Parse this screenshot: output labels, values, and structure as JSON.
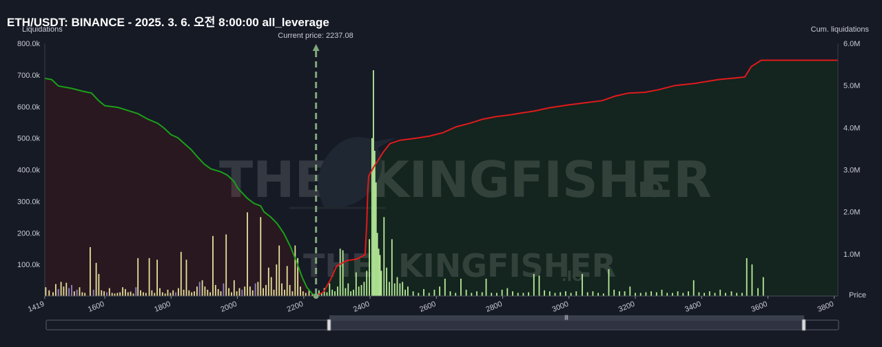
{
  "title": "ETH/USDT: BINANCE - 2025. 3. 6. 오전 8:00:00 all_leverage",
  "watermark": {
    "big_left": "THE",
    "big_right": "KINGFISHER",
    "big_suffix": ".IO",
    "small_left": "THE",
    "small_right": "KINGFISHER",
    "small_suffix": ".IO"
  },
  "colors": {
    "background": "#161a25",
    "short_fill": "#2a1820",
    "long_fill": "#14251e",
    "short_cum_line": "#1aa01a",
    "long_cum_line": "#e01b1b",
    "bar_yellow": "#e6e29a",
    "bar_purple": "#8f86c9",
    "bar_green": "#b8ee9a",
    "current_price": "#7fa97a"
  },
  "chart_data": {
    "type": "bar",
    "left_axis_title": "Liquidations",
    "right_axis_title": "Cum. liquidations",
    "x_axis_title": "Price",
    "current_price_label": "Current price: 2237.08",
    "current_price": 2237.08,
    "xlim": [
      1419,
      3811
    ],
    "y_left_lim": [
      0,
      800000
    ],
    "y_right_lim": [
      0,
      6000000
    ],
    "x_ticks": [
      1419,
      1600,
      1800,
      2000,
      2200,
      2400,
      2600,
      2800,
      3000,
      3200,
      3400,
      3600,
      3800
    ],
    "y_left_ticks": [
      {
        "v": 100000,
        "label": "100.0k"
      },
      {
        "v": 200000,
        "label": "200.0k"
      },
      {
        "v": 300000,
        "label": "300.0k"
      },
      {
        "v": 400000,
        "label": "400.0k"
      },
      {
        "v": 500000,
        "label": "500.0k"
      },
      {
        "v": 600000,
        "label": "600.0k"
      },
      {
        "v": 700000,
        "label": "700.0k"
      },
      {
        "v": 800000,
        "label": "800.0k"
      }
    ],
    "y_right_ticks": [
      {
        "v": 1000000,
        "label": "1.0M"
      },
      {
        "v": 2000000,
        "label": "2.0M"
      },
      {
        "v": 3000000,
        "label": "3.0M"
      },
      {
        "v": 4000000,
        "label": "4.0M"
      },
      {
        "v": 5000000,
        "label": "5.0M"
      },
      {
        "v": 6000000,
        "label": "6.0M"
      }
    ],
    "series": [
      {
        "kind": "cumulative-short",
        "points": [
          [
            1419,
            5170000
          ],
          [
            1440,
            5140000
          ],
          [
            1460,
            4990000
          ],
          [
            1500,
            4930000
          ],
          [
            1530,
            4870000
          ],
          [
            1560,
            4820000
          ],
          [
            1580,
            4650000
          ],
          [
            1600,
            4520000
          ],
          [
            1640,
            4480000
          ],
          [
            1680,
            4380000
          ],
          [
            1700,
            4330000
          ],
          [
            1730,
            4200000
          ],
          [
            1760,
            4100000
          ],
          [
            1780,
            3980000
          ],
          [
            1800,
            3830000
          ],
          [
            1820,
            3760000
          ],
          [
            1840,
            3620000
          ],
          [
            1860,
            3480000
          ],
          [
            1880,
            3300000
          ],
          [
            1900,
            3130000
          ],
          [
            1920,
            3020000
          ],
          [
            1950,
            2950000
          ],
          [
            1970,
            2870000
          ],
          [
            1990,
            2720000
          ],
          [
            2000,
            2570000
          ],
          [
            2030,
            2320000
          ],
          [
            2050,
            2200000
          ],
          [
            2070,
            2140000
          ],
          [
            2080,
            2000000
          ],
          [
            2100,
            1880000
          ],
          [
            2120,
            1720000
          ],
          [
            2140,
            1490000
          ],
          [
            2160,
            1170000
          ],
          [
            2180,
            780000
          ],
          [
            2195,
            450000
          ],
          [
            2210,
            200000
          ],
          [
            2225,
            60000
          ],
          [
            2237,
            0
          ]
        ]
      },
      {
        "kind": "cumulative-long",
        "points": [
          [
            2237,
            0
          ],
          [
            2260,
            100000
          ],
          [
            2280,
            380000
          ],
          [
            2300,
            720000
          ],
          [
            2330,
            840000
          ],
          [
            2360,
            880000
          ],
          [
            2385,
            980000
          ],
          [
            2390,
            1700000
          ],
          [
            2393,
            2500000
          ],
          [
            2396,
            2850000
          ],
          [
            2410,
            3050000
          ],
          [
            2440,
            3420000
          ],
          [
            2460,
            3620000
          ],
          [
            2490,
            3700000
          ],
          [
            2540,
            3750000
          ],
          [
            2580,
            3800000
          ],
          [
            2620,
            3880000
          ],
          [
            2660,
            4020000
          ],
          [
            2700,
            4100000
          ],
          [
            2740,
            4200000
          ],
          [
            2780,
            4260000
          ],
          [
            2820,
            4300000
          ],
          [
            2860,
            4350000
          ],
          [
            2900,
            4400000
          ],
          [
            2940,
            4470000
          ],
          [
            3000,
            4540000
          ],
          [
            3060,
            4600000
          ],
          [
            3100,
            4640000
          ],
          [
            3140,
            4750000
          ],
          [
            3180,
            4820000
          ],
          [
            3230,
            4840000
          ],
          [
            3270,
            4900000
          ],
          [
            3320,
            5000000
          ],
          [
            3380,
            5050000
          ],
          [
            3450,
            5140000
          ],
          [
            3530,
            5200000
          ],
          [
            3550,
            5450000
          ],
          [
            3580,
            5600000
          ],
          [
            3700,
            5600000
          ],
          [
            3811,
            5600000
          ]
        ]
      }
    ],
    "bars_short": [
      [
        1422,
        28000,
        "y"
      ],
      [
        1432,
        18000,
        "y"
      ],
      [
        1444,
        12000,
        "y"
      ],
      [
        1452,
        38000,
        "y"
      ],
      [
        1460,
        22000,
        "p"
      ],
      [
        1468,
        45000,
        "y"
      ],
      [
        1476,
        30000,
        "y"
      ],
      [
        1484,
        42000,
        "y"
      ],
      [
        1492,
        25000,
        "p"
      ],
      [
        1500,
        35000,
        "p"
      ],
      [
        1508,
        15000,
        "y"
      ],
      [
        1516,
        20000,
        "p"
      ],
      [
        1524,
        28000,
        "y"
      ],
      [
        1532,
        12000,
        "y"
      ],
      [
        1540,
        10000,
        "y"
      ],
      [
        1556,
        155000,
        "y"
      ],
      [
        1566,
        20000,
        "p"
      ],
      [
        1574,
        105000,
        "y"
      ],
      [
        1582,
        70000,
        "y"
      ],
      [
        1590,
        18000,
        "y"
      ],
      [
        1598,
        15000,
        "y"
      ],
      [
        1606,
        12000,
        "p"
      ],
      [
        1614,
        25000,
        "y"
      ],
      [
        1622,
        10000,
        "y"
      ],
      [
        1630,
        8000,
        "y"
      ],
      [
        1638,
        10000,
        "y"
      ],
      [
        1646,
        12000,
        "y"
      ],
      [
        1654,
        28000,
        "y"
      ],
      [
        1662,
        22000,
        "y"
      ],
      [
        1670,
        12000,
        "y"
      ],
      [
        1678,
        14000,
        "y"
      ],
      [
        1686,
        8000,
        "y"
      ],
      [
        1694,
        28000,
        "p"
      ],
      [
        1700,
        120000,
        "y"
      ],
      [
        1708,
        18000,
        "y"
      ],
      [
        1716,
        12000,
        "y"
      ],
      [
        1724,
        10000,
        "y"
      ],
      [
        1734,
        120000,
        "y"
      ],
      [
        1742,
        18000,
        "y"
      ],
      [
        1750,
        10000,
        "y"
      ],
      [
        1758,
        115000,
        "y"
      ],
      [
        1766,
        25000,
        "y"
      ],
      [
        1774,
        12000,
        "y"
      ],
      [
        1782,
        8000,
        "y"
      ],
      [
        1790,
        20000,
        "y"
      ],
      [
        1798,
        10000,
        "y"
      ],
      [
        1806,
        18000,
        "y"
      ],
      [
        1814,
        12000,
        "p"
      ],
      [
        1822,
        25000,
        "y"
      ],
      [
        1830,
        140000,
        "y"
      ],
      [
        1838,
        20000,
        "y"
      ],
      [
        1846,
        115000,
        "y"
      ],
      [
        1854,
        18000,
        "y"
      ],
      [
        1862,
        12000,
        "y"
      ],
      [
        1870,
        15000,
        "y"
      ],
      [
        1878,
        30000,
        "y"
      ],
      [
        1886,
        45000,
        "p"
      ],
      [
        1894,
        50000,
        "y"
      ],
      [
        1902,
        30000,
        "y"
      ],
      [
        1910,
        20000,
        "y"
      ],
      [
        1918,
        12000,
        "y"
      ],
      [
        1926,
        190000,
        "y"
      ],
      [
        1934,
        35000,
        "y"
      ],
      [
        1942,
        22000,
        "y"
      ],
      [
        1950,
        15000,
        "y"
      ],
      [
        1958,
        40000,
        "p"
      ],
      [
        1966,
        195000,
        "y"
      ],
      [
        1974,
        25000,
        "y"
      ],
      [
        1982,
        12000,
        "y"
      ],
      [
        1990,
        50000,
        "y"
      ],
      [
        1998,
        15000,
        "y"
      ],
      [
        2006,
        25000,
        "y"
      ],
      [
        2014,
        20000,
        "p"
      ],
      [
        2022,
        30000,
        "y"
      ],
      [
        2030,
        265000,
        "y"
      ],
      [
        2038,
        30000,
        "y"
      ],
      [
        2046,
        18000,
        "y"
      ],
      [
        2054,
        40000,
        "p"
      ],
      [
        2062,
        45000,
        "y"
      ],
      [
        2070,
        250000,
        "y"
      ],
      [
        2078,
        25000,
        "y"
      ],
      [
        2086,
        35000,
        "y"
      ],
      [
        2094,
        90000,
        "y"
      ],
      [
        2102,
        60000,
        "y"
      ],
      [
        2110,
        20000,
        "y"
      ],
      [
        2118,
        100000,
        "y"
      ],
      [
        2126,
        160000,
        "y"
      ],
      [
        2134,
        40000,
        "y"
      ],
      [
        2142,
        20000,
        "y"
      ],
      [
        2150,
        95000,
        "y"
      ],
      [
        2158,
        35000,
        "y"
      ],
      [
        2166,
        15000,
        "y"
      ],
      [
        2174,
        160000,
        "y"
      ],
      [
        2182,
        120000,
        "y"
      ],
      [
        2190,
        30000,
        "y"
      ],
      [
        2198,
        15000,
        "y"
      ],
      [
        2206,
        10000,
        "y"
      ],
      [
        2216,
        18000,
        "y"
      ],
      [
        2226,
        8000,
        "y"
      ]
    ],
    "bars_long": [
      [
        2246,
        18000
      ],
      [
        2254,
        10000
      ],
      [
        2262,
        25000
      ],
      [
        2270,
        12000
      ],
      [
        2278,
        40000
      ],
      [
        2286,
        20000
      ],
      [
        2294,
        15000
      ],
      [
        2302,
        30000
      ],
      [
        2310,
        150000
      ],
      [
        2318,
        145000
      ],
      [
        2326,
        25000
      ],
      [
        2334,
        40000
      ],
      [
        2342,
        15000
      ],
      [
        2350,
        20000
      ],
      [
        2358,
        75000
      ],
      [
        2366,
        30000
      ],
      [
        2374,
        35000
      ],
      [
        2382,
        45000
      ],
      [
        2390,
        80000
      ],
      [
        2398,
        180000
      ],
      [
        2406,
        500000
      ],
      [
        2410,
        715000
      ],
      [
        2414,
        460000
      ],
      [
        2418,
        360000
      ],
      [
        2422,
        200000
      ],
      [
        2426,
        150000
      ],
      [
        2430,
        130000
      ],
      [
        2434,
        80000
      ],
      [
        2442,
        250000
      ],
      [
        2450,
        90000
      ],
      [
        2458,
        45000
      ],
      [
        2466,
        180000
      ],
      [
        2474,
        40000
      ],
      [
        2482,
        60000
      ],
      [
        2490,
        40000
      ],
      [
        2498,
        45000
      ],
      [
        2506,
        20000
      ],
      [
        2514,
        30000
      ],
      [
        2530,
        15000
      ],
      [
        2546,
        10000
      ],
      [
        2562,
        22000
      ],
      [
        2578,
        10000
      ],
      [
        2594,
        20000
      ],
      [
        2610,
        30000
      ],
      [
        2626,
        55000
      ],
      [
        2642,
        15000
      ],
      [
        2658,
        10000
      ],
      [
        2674,
        55000
      ],
      [
        2690,
        20000
      ],
      [
        2706,
        10000
      ],
      [
        2722,
        15000
      ],
      [
        2738,
        12000
      ],
      [
        2750,
        55000
      ],
      [
        2766,
        10000
      ],
      [
        2782,
        10000
      ],
      [
        2798,
        20000
      ],
      [
        2814,
        25000
      ],
      [
        2830,
        15000
      ],
      [
        2846,
        10000
      ],
      [
        2862,
        10000
      ],
      [
        2878,
        12000
      ],
      [
        2894,
        70000
      ],
      [
        2910,
        65000
      ],
      [
        2926,
        18000
      ],
      [
        2942,
        15000
      ],
      [
        2958,
        10000
      ],
      [
        2974,
        12000
      ],
      [
        2990,
        15000
      ],
      [
        3006,
        10000
      ],
      [
        3022,
        15000
      ],
      [
        3040,
        70000
      ],
      [
        3056,
        12000
      ],
      [
        3072,
        15000
      ],
      [
        3088,
        10000
      ],
      [
        3104,
        8000
      ],
      [
        3120,
        85000
      ],
      [
        3136,
        20000
      ],
      [
        3152,
        15000
      ],
      [
        3168,
        15000
      ],
      [
        3184,
        30000
      ],
      [
        3200,
        10000
      ],
      [
        3216,
        10000
      ],
      [
        3232,
        12000
      ],
      [
        3248,
        15000
      ],
      [
        3264,
        12000
      ],
      [
        3280,
        20000
      ],
      [
        3296,
        10000
      ],
      [
        3312,
        10000
      ],
      [
        3328,
        15000
      ],
      [
        3344,
        10000
      ],
      [
        3360,
        15000
      ],
      [
        3376,
        50000
      ],
      [
        3392,
        12000
      ],
      [
        3408,
        10000
      ],
      [
        3424,
        15000
      ],
      [
        3440,
        10000
      ],
      [
        3456,
        20000
      ],
      [
        3472,
        10000
      ],
      [
        3490,
        15000
      ],
      [
        3506,
        10000
      ],
      [
        3522,
        10000
      ],
      [
        3536,
        120000
      ],
      [
        3552,
        100000
      ],
      [
        3570,
        25000
      ],
      [
        3586,
        60000
      ]
    ]
  },
  "range_slider": {
    "grip": "|||"
  }
}
